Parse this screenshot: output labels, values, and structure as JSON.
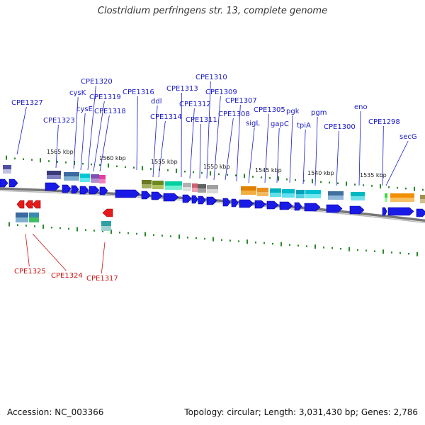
{
  "title": "Clostridium perfringens str. 13, complete genome",
  "footer": {
    "accession": "Accession: NC_003366",
    "topology": "Topology: circular; Length: 3,031,430 bp; Genes: 2,786"
  },
  "scale_labels": [
    "1565 kbp",
    "1560 kbp",
    "1555 kbp",
    "1550 kbp",
    "1545 kbp",
    "1540 kbp",
    "1535 kbp"
  ],
  "forward_gene_labels": [
    "CPE1327",
    "CPE1323",
    "cysK",
    "cysE",
    "CPE1320",
    "CPE1319",
    "CPE1318",
    "CPE1316",
    "ddl",
    "CPE1314",
    "CPE1313",
    "CPE1312",
    "CPE1311",
    "CPE1310",
    "CPE1309",
    "CPE1308",
    "CPE1307",
    "sigL",
    "CPE1305",
    "gapC",
    "pgk",
    "tpiA",
    "pgm",
    "CPE1300",
    "eno",
    "CPE1298",
    "secG"
  ],
  "reverse_gene_labels": [
    "CPE1325",
    "CPE1324",
    "CPE1317"
  ],
  "colors": {
    "forward_label": "#1a1acc",
    "reverse_label": "#cc1111",
    "forward_gene": "#1a1ae6",
    "reverse_gene": "#e61a1a",
    "backbone": "#888888",
    "tick": "#2a8a2a"
  }
}
